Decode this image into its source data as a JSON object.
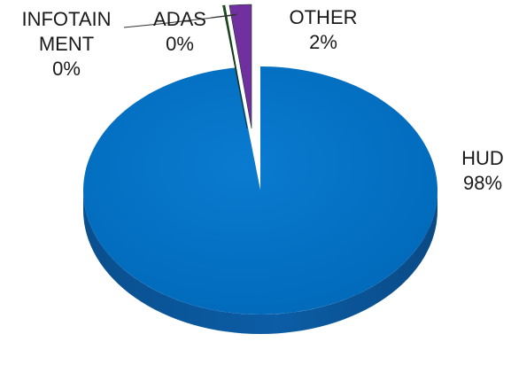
{
  "chart_data": {
    "type": "pie",
    "title": "",
    "legend": "none",
    "slices": [
      {
        "name": "HUD",
        "label_lines": [
          "HUD"
        ],
        "value": 98,
        "value_label": "98%",
        "color": "#0070c0"
      },
      {
        "name": "INFOTAINMENT",
        "label_lines": [
          "INFOTAIN",
          "MENT"
        ],
        "value": 0,
        "value_label": "0%",
        "color": "#2f7d32"
      },
      {
        "name": "ADAS",
        "label_lines": [
          "ADAS"
        ],
        "value": 0,
        "value_label": "0%",
        "color": "#1f5c1f"
      },
      {
        "name": "OTHER",
        "label_lines": [
          "OTHER"
        ],
        "value": 2,
        "value_label": "2%",
        "color": "#7030a0"
      }
    ]
  }
}
